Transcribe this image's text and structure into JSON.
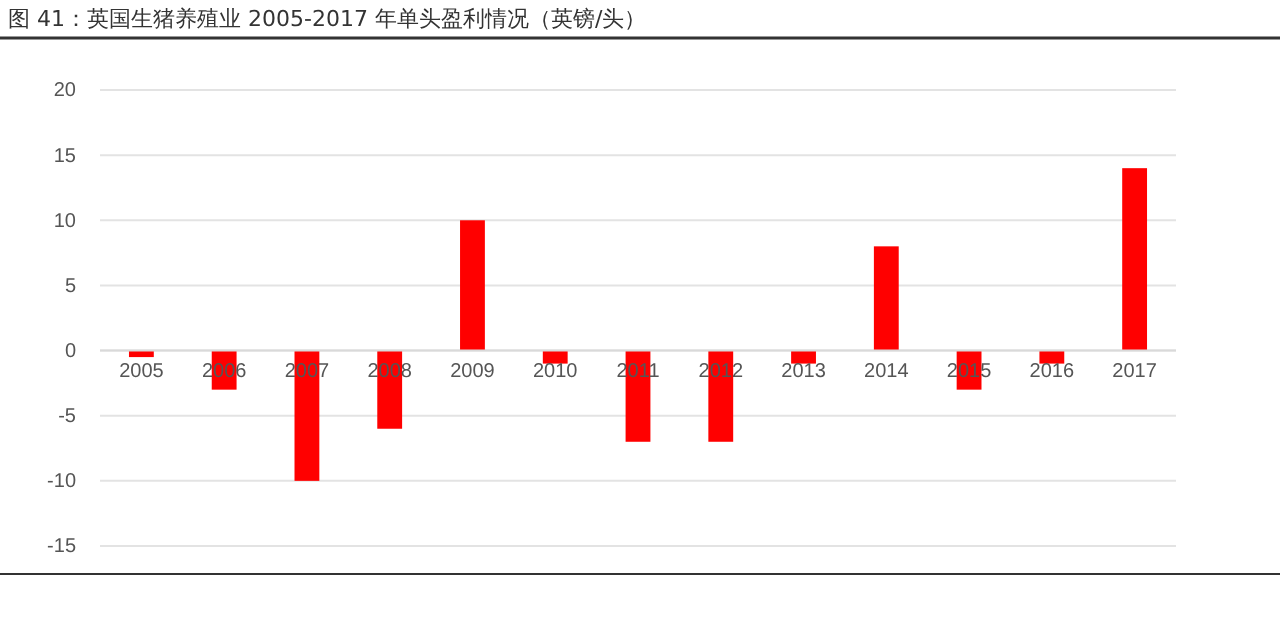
{
  "chart_data": {
    "type": "bar",
    "title": "图 41：英国生猪养殖业 2005-2017 年单头盈利情况（英镑/头）",
    "categories": [
      "2005",
      "2006",
      "2007",
      "2008",
      "2009",
      "2010",
      "2011",
      "2012",
      "2013",
      "2014",
      "2015",
      "2016",
      "2017"
    ],
    "values": [
      -0.5,
      -3,
      -10,
      -6,
      10,
      -1,
      -7,
      -7,
      -1,
      8,
      -3,
      -1,
      14
    ],
    "color": "#ff0000",
    "ylim": [
      -15,
      20
    ],
    "yticks": [
      -15,
      -10,
      -5,
      0,
      5,
      10,
      15,
      20
    ],
    "grid": "y"
  }
}
